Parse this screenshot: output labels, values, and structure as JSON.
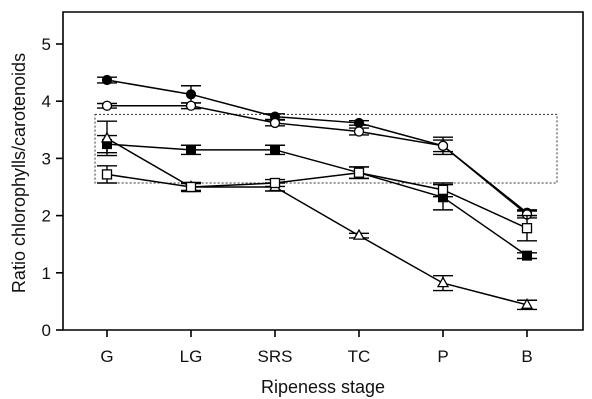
{
  "chart_data": {
    "type": "line",
    "xlabel": "Ripeness stage",
    "ylabel": "Ratio chlorophylls/carotenoids",
    "categories": [
      "G",
      "LG",
      "SRS",
      "TC",
      "P",
      "B"
    ],
    "ylim": [
      0,
      5.4
    ],
    "yticks": [
      0,
      1,
      2,
      3,
      4,
      5
    ],
    "grid": false,
    "series": [
      {
        "marker": "filled-circle",
        "values": [
          4.37,
          4.12,
          3.73,
          3.62,
          3.22,
          2.05
        ],
        "errors": [
          0.05,
          0.15,
          0.05,
          0.04,
          0.1,
          0.05
        ]
      },
      {
        "marker": "open-circle",
        "values": [
          3.92,
          3.92,
          3.62,
          3.47,
          3.22,
          2.02
        ],
        "errors": [
          0.04,
          0.05,
          0.05,
          0.06,
          0.15,
          0.06
        ]
      },
      {
        "marker": "filled-square",
        "values": [
          3.25,
          3.15,
          3.15,
          2.75,
          2.32,
          1.3
        ],
        "errors": [
          0.15,
          0.08,
          0.08,
          0.1,
          0.22,
          0.05
        ]
      },
      {
        "marker": "open-triangle",
        "values": [
          3.35,
          2.5,
          2.5,
          1.65,
          0.82,
          0.44
        ],
        "errors": [
          0.3,
          0.08,
          0.07,
          0.04,
          0.13,
          0.08
        ]
      },
      {
        "marker": "open-square",
        "values": [
          2.72,
          2.5,
          2.57,
          2.75,
          2.45,
          1.78
        ],
        "errors": [
          0.15,
          0.06,
          0.06,
          0.1,
          0.12,
          0.22
        ]
      }
    ],
    "reference_band": {
      "x_from": 0.0,
      "x_to": 5.0,
      "y_from": 2.57,
      "y_to": 3.77
    }
  }
}
